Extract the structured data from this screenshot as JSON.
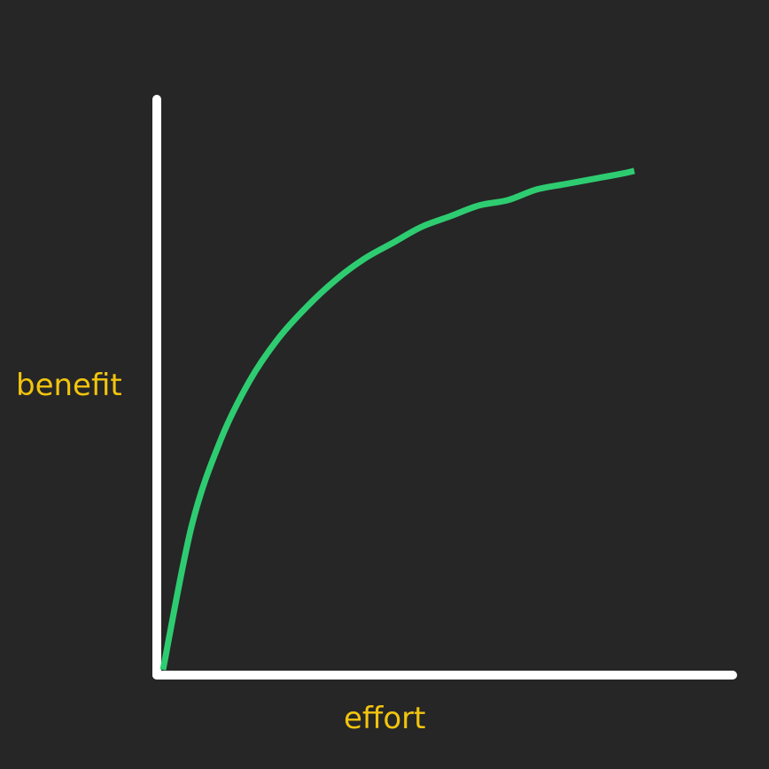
{
  "chart_data": {
    "type": "line",
    "title": "",
    "xlabel": "effort",
    "ylabel": "benefit",
    "xlim": [
      0,
      1
    ],
    "ylim": [
      0,
      1
    ],
    "grid": false,
    "legend": "none",
    "tick_labels": false,
    "series": [
      {
        "x": [
          0,
          0.05,
          0.1,
          0.15,
          0.2,
          0.25,
          0.3,
          0.35,
          0.4,
          0.45,
          0.5,
          0.55,
          0.6,
          0.65,
          0.7,
          0.75,
          0.8,
          0.82
        ],
        "y": [
          0,
          0.27,
          0.43,
          0.54,
          0.62,
          0.68,
          0.73,
          0.77,
          0.8,
          0.83,
          0.85,
          0.87,
          0.88,
          0.9,
          0.91,
          0.92,
          0.93,
          0.935
        ]
      }
    ]
  },
  "colors": {
    "background": "#262626",
    "axis": "#ffffff",
    "curve": "#2ecc71",
    "label": "#f1c40f"
  }
}
